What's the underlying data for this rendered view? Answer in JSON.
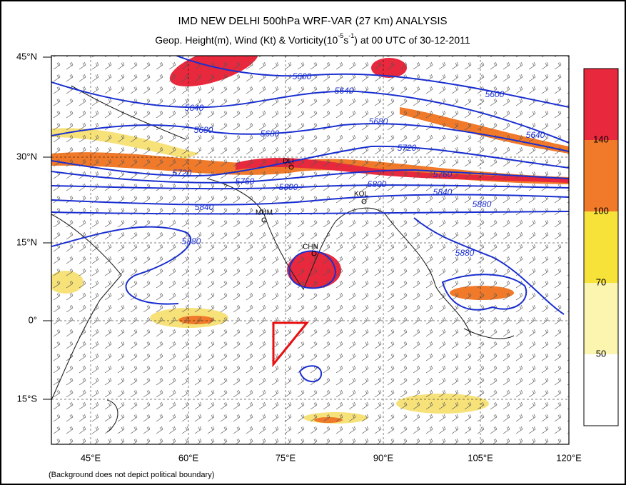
{
  "header": {
    "title": "IMD NEW DELHI 500hPa WRF-VAR (27 Km) ANALYSIS",
    "subtitle": [
      "Geop. Height(m), Wind (Kt) & Vorticity(10",
      "-5",
      "s",
      "-1",
      ") at 00 UTC of 30-12-2011"
    ]
  },
  "map": {
    "lat_labels": [
      "45°N",
      "30°N",
      "15°N",
      "0°",
      "15°S"
    ],
    "lon_labels": [
      "45°E",
      "60°E",
      "75°E",
      "90°E",
      "105°E",
      "120°E"
    ],
    "contour_labels": [
      "5600",
      "5640",
      "5600",
      "5640",
      "5680",
      "5680",
      "5680",
      "5640",
      "5720",
      "5720",
      "5760",
      "5760",
      "5800",
      "5800",
      "5840",
      "5840",
      "5880",
      "5880",
      "5880"
    ],
    "city_labels": [
      "DLI",
      "KOL",
      "MUM",
      "CHN"
    ]
  },
  "colorbar": {
    "labels": [
      140,
      100,
      70,
      50
    ]
  },
  "footnote": "(Background does not depict political boundary)"
}
